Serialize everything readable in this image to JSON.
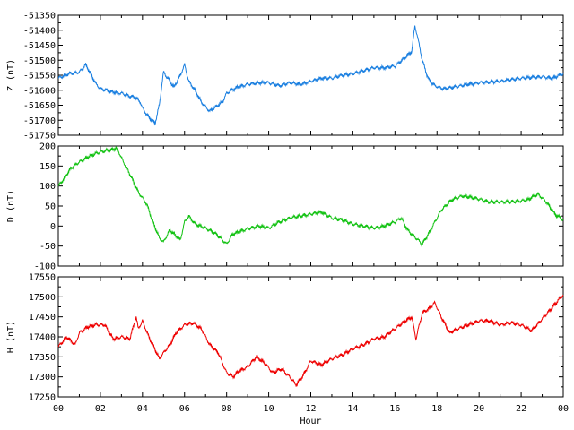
{
  "chart_data": [
    {
      "type": "line",
      "ylabel": "Z (nT)",
      "ylim": [
        -51750,
        -51350
      ],
      "yticks": [
        "-51350",
        "-51400",
        "-51450",
        "-51500",
        "-51550",
        "-51600",
        "-51650",
        "-51700",
        "-51750"
      ],
      "xlim": [
        0,
        24
      ],
      "grid": false,
      "color": "#1a7fe0",
      "series": [
        {
          "x": [
            0,
            0.5,
            1,
            1.3,
            1.5,
            1.8,
            2,
            2.5,
            3,
            3.4,
            3.7,
            3.9,
            4,
            4.3,
            4.6,
            4.8,
            5,
            5.2,
            5.5,
            5.8,
            6,
            6.2,
            6.5,
            6.8,
            7.2,
            7.5,
            7.8,
            8,
            8.5,
            9,
            9.5,
            10,
            10.5,
            11,
            11.5,
            12,
            12.5,
            13,
            13.5,
            14,
            14.5,
            15,
            15.5,
            16,
            16.5,
            16.8,
            16.95,
            17.1,
            17.3,
            17.6,
            17.9,
            18.3,
            18.8,
            19.5,
            20,
            21,
            22,
            23,
            23.5,
            24
          ],
          "y": [
            -51560,
            -51545,
            -51540,
            -51515,
            -51540,
            -51580,
            -51595,
            -51605,
            -51610,
            -51620,
            -51625,
            -51640,
            -51660,
            -51690,
            -51710,
            -51650,
            -51540,
            -51560,
            -51590,
            -51550,
            -51515,
            -51570,
            -51600,
            -51640,
            -51670,
            -51655,
            -51640,
            -51610,
            -51590,
            -51580,
            -51575,
            -51575,
            -51585,
            -51575,
            -51580,
            -51570,
            -51560,
            -51560,
            -51550,
            -51545,
            -51535,
            -51525,
            -51525,
            -51520,
            -51490,
            -51470,
            -51385,
            -51430,
            -51500,
            -51565,
            -51585,
            -51595,
            -51590,
            -51580,
            -51575,
            -51570,
            -51560,
            -51555,
            -51560,
            -51545
          ]
        }
      ]
    },
    {
      "type": "line",
      "ylabel": "D (nT)",
      "ylim": [
        -100,
        200
      ],
      "yticks": [
        "200",
        "150",
        "100",
        "50",
        "0",
        "-50",
        "-100"
      ],
      "xlim": [
        0,
        24
      ],
      "grid": false,
      "color": "#13c213",
      "series": [
        {
          "x": [
            0,
            0.3,
            0.6,
            1,
            1.5,
            2,
            2.5,
            2.8,
            3,
            3.4,
            3.8,
            4.2,
            4.5,
            4.8,
            5,
            5.3,
            5.6,
            5.8,
            6,
            6.2,
            6.5,
            7,
            7.5,
            8,
            8.3,
            8.8,
            9.5,
            10,
            10.5,
            11,
            11.5,
            12,
            12.5,
            13,
            13.5,
            14,
            14.5,
            15,
            15.5,
            16,
            16.3,
            16.6,
            17,
            17.3,
            17.7,
            18.2,
            18.7,
            19.2,
            19.8,
            20.5,
            21.5,
            22.3,
            22.8,
            23.2,
            23.6,
            24
          ],
          "y": [
            100,
            120,
            145,
            160,
            175,
            185,
            190,
            195,
            170,
            130,
            85,
            55,
            10,
            -30,
            -40,
            -10,
            -25,
            -35,
            10,
            25,
            5,
            -5,
            -20,
            -45,
            -20,
            -10,
            0,
            -5,
            10,
            20,
            25,
            30,
            35,
            20,
            15,
            5,
            0,
            -5,
            0,
            10,
            20,
            -10,
            -30,
            -45,
            -10,
            40,
            65,
            75,
            70,
            60,
            60,
            65,
            80,
            60,
            30,
            15
          ]
        }
      ]
    },
    {
      "type": "line",
      "ylabel": "H (nT)",
      "xlabel": "Hour",
      "ylim": [
        17250,
        17550
      ],
      "yticks": [
        "17550",
        "17500",
        "17450",
        "17400",
        "17350",
        "17300",
        "17250"
      ],
      "xlim": [
        0,
        24
      ],
      "xticks": [
        "00",
        "02",
        "04",
        "06",
        "08",
        "10",
        "12",
        "14",
        "16",
        "18",
        "20",
        "22",
        "00"
      ],
      "grid": false,
      "color": "#ee0000",
      "series": [
        {
          "x": [
            0,
            0.4,
            0.8,
            1,
            1.4,
            1.8,
            2.2,
            2.6,
            3,
            3.4,
            3.7,
            3.8,
            4,
            4.3,
            4.5,
            4.8,
            5,
            5.3,
            5.6,
            6,
            6.4,
            6.8,
            7.2,
            7.6,
            8,
            8.3,
            8.6,
            9,
            9.4,
            9.8,
            10.2,
            10.6,
            11,
            11.3,
            11.6,
            12,
            12.5,
            13,
            13.5,
            14,
            14.5,
            15,
            15.5,
            16,
            16.5,
            16.8,
            17,
            17.3,
            17.6,
            17.9,
            18.2,
            18.6,
            19,
            19.5,
            20,
            20.5,
            21,
            21.5,
            22,
            22.5,
            23,
            23.5,
            24
          ],
          "y": [
            17375,
            17400,
            17380,
            17410,
            17425,
            17430,
            17430,
            17395,
            17400,
            17395,
            17450,
            17420,
            17440,
            17400,
            17380,
            17345,
            17360,
            17380,
            17410,
            17430,
            17435,
            17420,
            17380,
            17360,
            17310,
            17300,
            17315,
            17325,
            17350,
            17335,
            17310,
            17320,
            17300,
            17280,
            17300,
            17340,
            17330,
            17345,
            17355,
            17370,
            17380,
            17395,
            17400,
            17420,
            17440,
            17450,
            17395,
            17460,
            17470,
            17485,
            17450,
            17410,
            17420,
            17430,
            17440,
            17440,
            17430,
            17435,
            17430,
            17415,
            17445,
            17475,
            17505
          ]
        }
      ]
    }
  ]
}
